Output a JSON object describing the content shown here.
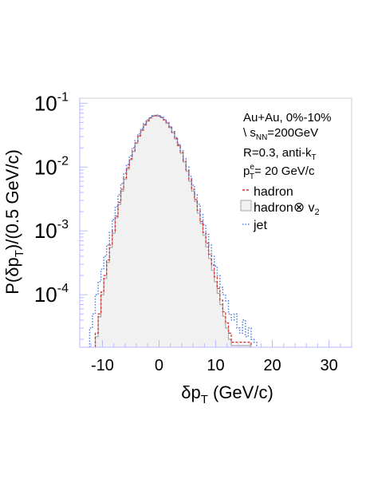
{
  "chart_data": {
    "type": "step-histogram",
    "xlabel": "δp_T (GeV/c)",
    "xlabel_main": "δp",
    "xlabel_sub": "T",
    "xlabel_unit": " (GeV/c)",
    "ylabel": "P(δp_T)/(0.5 GeV/c)",
    "ylabel_a": "P(δp",
    "ylabel_sub": "T",
    "ylabel_b": ")/(0.5 GeV/c)",
    "xlim": [
      -14,
      34
    ],
    "ylim": [
      1.5e-05,
      0.12
    ],
    "yscale": "log",
    "grid": false,
    "legend_position": "top-right",
    "x_ticks": [
      {
        "v": -10,
        "label": "-10"
      },
      {
        "v": 0,
        "label": "0"
      },
      {
        "v": 10,
        "label": "10"
      },
      {
        "v": 20,
        "label": "20"
      },
      {
        "v": 30,
        "label": "30"
      }
    ],
    "y_ticks": [
      {
        "v": 0.0001,
        "base": "10",
        "exp": "-4"
      },
      {
        "v": 0.001,
        "base": "10",
        "exp": "-3"
      },
      {
        "v": 0.01,
        "base": "10",
        "exp": "-2"
      },
      {
        "v": 0.1,
        "base": "10",
        "exp": "-1"
      }
    ],
    "annotations": {
      "line1": "Au+Au, 0%-10%",
      "line2_pre": "\\ s",
      "line2_sub": "NN",
      "line2_post": "=200GeV",
      "line3_pre": "R=0.3, anti-k",
      "line3_sub": "T",
      "line4_pre": "p",
      "line4_sup": "e",
      "line4_sub": "T",
      "line4_post": "= 20 GeV/c"
    },
    "legend": [
      {
        "label": "hadron",
        "style": "red-dashed"
      },
      {
        "label_pre": "hadron",
        "label_op": "⊗",
        "label_v": " v",
        "label_sub": "2",
        "style": "gray-filled"
      },
      {
        "label": "jet",
        "style": "blue-dotted"
      }
    ],
    "colors": {
      "hadron": "#d9302c",
      "hadron_v2": "#a8a8a8",
      "hadron_v2_fill": "#f1f1f1",
      "jet": "#4f7fe0"
    },
    "bin_width": 0.5,
    "series": [
      {
        "name": "hadron",
        "x": [
          -11,
          -10.5,
          -10,
          -9.5,
          -9,
          -8.5,
          -8,
          -7.5,
          -7,
          -6.5,
          -6,
          -5.5,
          -5,
          -4.5,
          -4,
          -3.5,
          -3,
          -2.5,
          -2,
          -1.5,
          -1,
          -0.5,
          0,
          0.5,
          1,
          1.5,
          2,
          2.5,
          3,
          3.5,
          4,
          4.5,
          5,
          5.5,
          6,
          6.5,
          7,
          7.5,
          8,
          8.5,
          9,
          9.5,
          10,
          10.5,
          11,
          11.5,
          12,
          12.5,
          13,
          13.5,
          14,
          14.5,
          15,
          15.5,
          16
        ],
        "values": [
          2.5e-05,
          5e-05,
          0.00011,
          0.0002,
          0.00035,
          0.0006,
          0.001,
          0.0017,
          0.0028,
          0.0045,
          0.0068,
          0.0098,
          0.0135,
          0.018,
          0.024,
          0.031,
          0.038,
          0.046,
          0.053,
          0.059,
          0.063,
          0.064,
          0.063,
          0.06,
          0.055,
          0.049,
          0.042,
          0.035,
          0.028,
          0.022,
          0.017,
          0.0125,
          0.009,
          0.0064,
          0.0045,
          0.0031,
          0.0021,
          0.0014,
          0.00095,
          0.00064,
          0.00043,
          0.00029,
          0.00019,
          0.000125,
          8.2e-05,
          5.4e-05,
          3.6e-05,
          2.5e-05,
          1.8e-05,
          1.8e-05,
          1.8e-05,
          1.8e-05,
          1.8e-05,
          1.8e-05,
          1.8e-05
        ]
      },
      {
        "name": "hadron ⊗ v2",
        "x": [
          -11,
          -10.5,
          -10,
          -9.5,
          -9,
          -8.5,
          -8,
          -7.5,
          -7,
          -6.5,
          -6,
          -5.5,
          -5,
          -4.5,
          -4,
          -3.5,
          -3,
          -2.5,
          -2,
          -1.5,
          -1,
          -0.5,
          0,
          0.5,
          1,
          1.5,
          2,
          2.5,
          3,
          3.5,
          4,
          4.5,
          5,
          5.5,
          6,
          6.5,
          7,
          7.5,
          8,
          8.5,
          9,
          9.5,
          10,
          10.5,
          11,
          11.5,
          12,
          12.5,
          13,
          13.5,
          14,
          14.5,
          15,
          15.5,
          16
        ],
        "values": [
          2.2e-05,
          4.5e-05,
          0.0001,
          0.00018,
          0.00032,
          0.00055,
          0.00092,
          0.0016,
          0.0026,
          0.0042,
          0.0064,
          0.0093,
          0.013,
          0.0175,
          0.0235,
          0.0305,
          0.0375,
          0.0455,
          0.0525,
          0.0585,
          0.0625,
          0.0635,
          0.0625,
          0.0595,
          0.0545,
          0.0485,
          0.0415,
          0.0345,
          0.0275,
          0.0215,
          0.0165,
          0.012,
          0.0086,
          0.006,
          0.0042,
          0.0029,
          0.0019,
          0.0013,
          0.00085,
          0.00056,
          0.00037,
          0.00024,
          0.00016,
          0.000105,
          7e-05,
          4.6e-05,
          3e-05,
          2e-05,
          1.6e-05,
          1.6e-05,
          1.6e-05,
          1.6e-05,
          1.6e-05,
          1.6e-05,
          1.6e-05
        ]
      },
      {
        "name": "jet",
        "x": [
          -12,
          -11.5,
          -11,
          -10.5,
          -10,
          -9.5,
          -9,
          -8.5,
          -8,
          -7.5,
          -7,
          -6.5,
          -6,
          -5.5,
          -5,
          -4.5,
          -4,
          -3.5,
          -3,
          -2.5,
          -2,
          -1.5,
          -1,
          -0.5,
          0,
          0.5,
          1,
          1.5,
          2,
          2.5,
          3,
          3.5,
          4,
          4.5,
          5,
          5.5,
          6,
          6.5,
          7,
          7.5,
          8,
          8.5,
          9,
          9.5,
          10,
          10.5,
          11,
          11.5,
          12,
          12.5,
          13,
          13.5,
          14,
          14.5,
          15,
          15.5,
          16,
          16.5,
          17
        ],
        "values": [
          3e-05,
          5e-05,
          0.0001,
          0.00016,
          0.00025,
          0.0004,
          0.0006,
          0.00095,
          0.0015,
          0.0024,
          0.0037,
          0.0055,
          0.008,
          0.011,
          0.015,
          0.02,
          0.026,
          0.033,
          0.04,
          0.048,
          0.055,
          0.06,
          0.064,
          0.065,
          0.064,
          0.061,
          0.056,
          0.05,
          0.043,
          0.036,
          0.029,
          0.023,
          0.018,
          0.0135,
          0.01,
          0.0072,
          0.0052,
          0.0037,
          0.0026,
          0.0018,
          0.00125,
          0.00088,
          0.0006,
          0.0004,
          0.00028,
          0.0002,
          0.00013,
          0.0001,
          8e-05,
          5e-05,
          4e-05,
          5e-05,
          3e-05,
          2.5e-05,
          4e-05,
          2.2e-05,
          3e-05,
          2e-05,
          1.8e-05
        ]
      }
    ]
  }
}
